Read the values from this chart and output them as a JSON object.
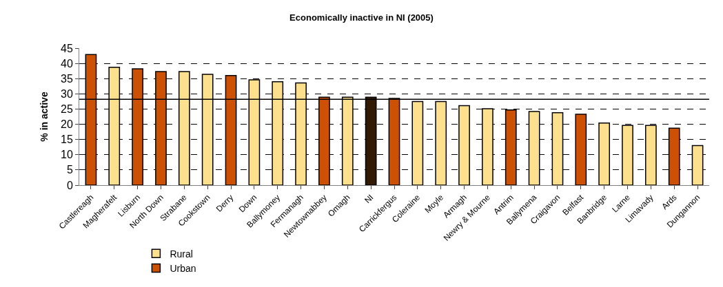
{
  "chart_data": {
    "type": "bar",
    "title": "Economically inactive in NI (2005)",
    "ylabel": "% in active",
    "categories": [
      "Castlereagh",
      "Magherafelt",
      "Lisburn",
      "North Down",
      "Strabane",
      "Cookstown",
      "Derry",
      "Down",
      "Ballymoney",
      "Fermanagh",
      "Newtownabbey",
      "Omagh",
      "NI",
      "Carrickfergus",
      "Coleraine",
      "Moyle",
      "Armagh",
      "Newry & Mourne",
      "Antrim",
      "Ballymena",
      "Craigavon",
      "Belfast",
      "Banbridge",
      "Larne",
      "Limavady",
      "Ards",
      "Dungannon"
    ],
    "series": [
      {
        "name": "Rural",
        "color": "#fde08e",
        "values": [
          null,
          38.7,
          null,
          null,
          37.3,
          36.4,
          null,
          34.6,
          34.0,
          33.6,
          null,
          28.9,
          null,
          null,
          27.5,
          27.5,
          26.1,
          25.1,
          null,
          24.2,
          23.8,
          null,
          20.4,
          19.6,
          19.6,
          null,
          13.0
        ]
      },
      {
        "name": "Urban",
        "color": "#cc5104",
        "values": [
          42.9,
          null,
          38.2,
          37.3,
          null,
          null,
          36.0,
          null,
          null,
          null,
          28.9,
          null,
          null,
          28.5,
          null,
          null,
          null,
          null,
          24.7,
          null,
          null,
          23.3,
          null,
          null,
          null,
          18.7,
          null
        ]
      },
      {
        "color": "#331a04",
        "values": [
          null,
          null,
          null,
          null,
          null,
          null,
          null,
          null,
          null,
          null,
          null,
          null,
          28.9,
          null,
          null,
          null,
          null,
          null,
          null,
          null,
          null,
          null,
          null,
          null,
          null,
          null,
          null
        ]
      }
    ],
    "ylim": [
      0,
      45
    ],
    "yticks": [
      0,
      5,
      10,
      15,
      20,
      25,
      30,
      35,
      40,
      45
    ],
    "grid": "y",
    "legend": "bottom",
    "ref_lines": [
      {
        "axis": "y",
        "value": 28.2,
        "color": "#000000"
      }
    ]
  }
}
